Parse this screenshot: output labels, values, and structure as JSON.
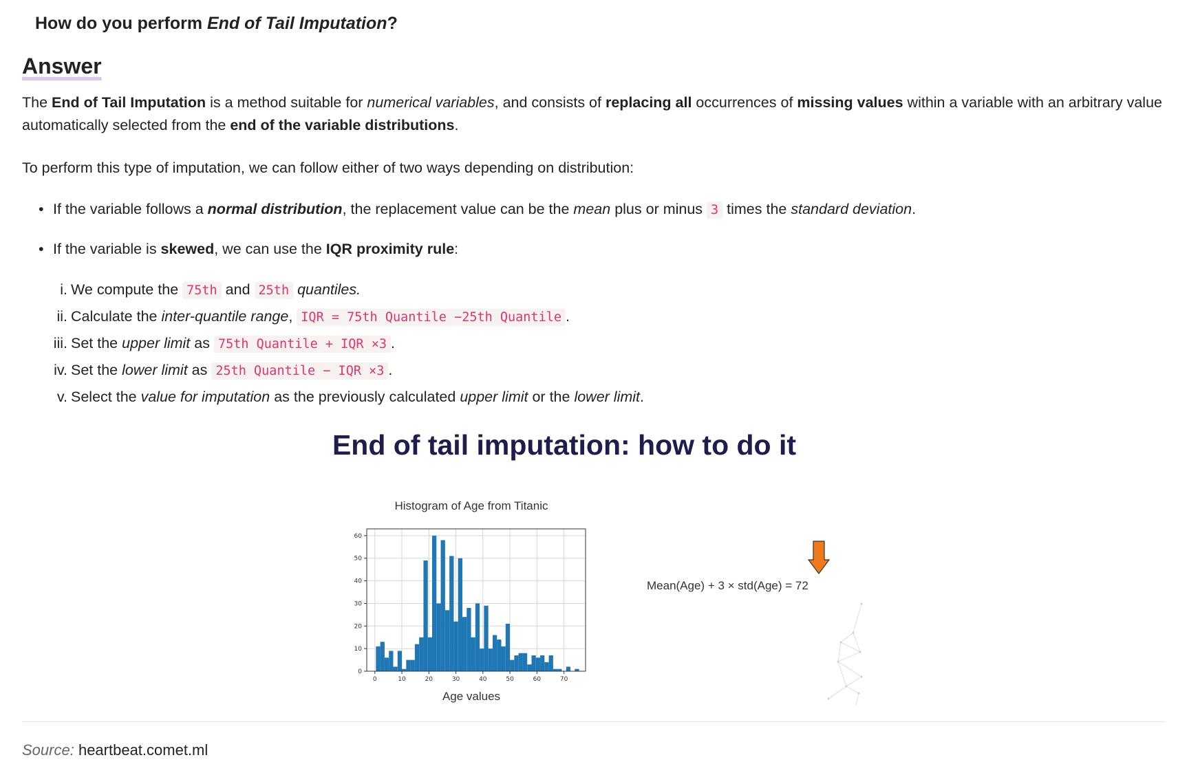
{
  "question": {
    "prefix": "How do you perform ",
    "emph": "End of Tail Imputation",
    "suffix": "?"
  },
  "answer_heading": "Answer",
  "intro": {
    "t1": "The ",
    "b1": "End of Tail Imputation",
    "t2": " is a method suitable for ",
    "i1": "numerical variables",
    "t3": ", and consists of ",
    "b2": "replacing all",
    "t4": " occurrences of ",
    "b3": "missing values",
    "t5": " within a variable with an arbitrary value automatically selected from the ",
    "b4": "end of the variable distributions",
    "t6": "."
  },
  "ways_text": "To perform this type of imputation, we can follow either of two ways depending on distribution:",
  "bullet1": {
    "t1": "If the variable follows a ",
    "bi": "normal distribution",
    "t2": ", the replacement value can be the ",
    "i1": "mean",
    "t3": " plus or minus ",
    "code": "3",
    "t4": " times the ",
    "i2": "standard deviation",
    "t5": "."
  },
  "bullet2": {
    "t1": "If the variable is ",
    "b1": "skewed",
    "t2": ", we can use the ",
    "b2": "IQR proximity rule",
    "t3": ":"
  },
  "steps": [
    {
      "num": "i.",
      "t1": "We compute the ",
      "c1": "75th",
      "t2": " and ",
      "c2": "25th",
      "t3": " ",
      "i1": "quantiles."
    },
    {
      "num": "ii.",
      "t1": "Calculate the ",
      "i1": "inter-quantile range",
      "t2": ", ",
      "c1": "IQR = 75th Quantile −25th Quantile",
      "t3": "."
    },
    {
      "num": "iii.",
      "t1": "Set the ",
      "i1": "upper limit",
      "t2": " as ",
      "c1": "75th Quantile + IQR ×3",
      "t3": "."
    },
    {
      "num": "iv.",
      "t1": "Set the ",
      "i1": "lower limit",
      "t2": " as ",
      "c1": "25th Quantile − IQR ×3",
      "t3": "."
    },
    {
      "num": "v.",
      "t1": "Select the ",
      "i1": "value for imputation",
      "t2": " as the previously calculated ",
      "i2": "upper limit",
      "t3": " or the ",
      "i3": "lower limit",
      "t4": "."
    }
  ],
  "figure": {
    "title": "End of tail imputation: how to do it",
    "formula": "Mean(Age) + 3 × std(Age) = 72",
    "arrow_color": "#f07a1a"
  },
  "chart_data": {
    "type": "bar",
    "title": "Histogram of Age from Titanic",
    "xlabel": "Age values",
    "ylabel": "",
    "xlim": [
      -3,
      78
    ],
    "ylim": [
      0,
      63
    ],
    "xticks": [
      0,
      10,
      20,
      30,
      40,
      50,
      60,
      70
    ],
    "yticks": [
      0,
      10,
      20,
      30,
      40,
      50,
      60
    ],
    "grid": true,
    "bar_color": "#1f77b4",
    "bin_width": 1.6,
    "bin_starts": [
      0.4,
      2.0,
      3.6,
      5.2,
      6.8,
      8.4,
      10.0,
      11.6,
      13.2,
      14.8,
      16.4,
      18.0,
      19.6,
      21.2,
      22.8,
      24.4,
      26.0,
      27.6,
      29.2,
      30.8,
      32.4,
      34.0,
      35.6,
      37.2,
      38.8,
      40.4,
      42.0,
      43.6,
      45.2,
      46.8,
      48.4,
      50.0,
      51.6,
      53.2,
      54.8,
      56.4,
      58.0,
      59.6,
      61.2,
      62.8,
      64.4,
      66.0,
      67.6,
      69.2,
      70.8,
      72.4,
      74.0
    ],
    "values": [
      11,
      13,
      6,
      9,
      2,
      9,
      1,
      5,
      5,
      12,
      15,
      49,
      15,
      60,
      30,
      58,
      27,
      51,
      22,
      50,
      24,
      28,
      15,
      30,
      10,
      29,
      10,
      16,
      14,
      11,
      21,
      5,
      7,
      8,
      8,
      3,
      7,
      6,
      7,
      4,
      7,
      1,
      1,
      0,
      2,
      0,
      1
    ]
  },
  "source": {
    "label": "Source:",
    "value": "heartbeat.comet.ml"
  }
}
